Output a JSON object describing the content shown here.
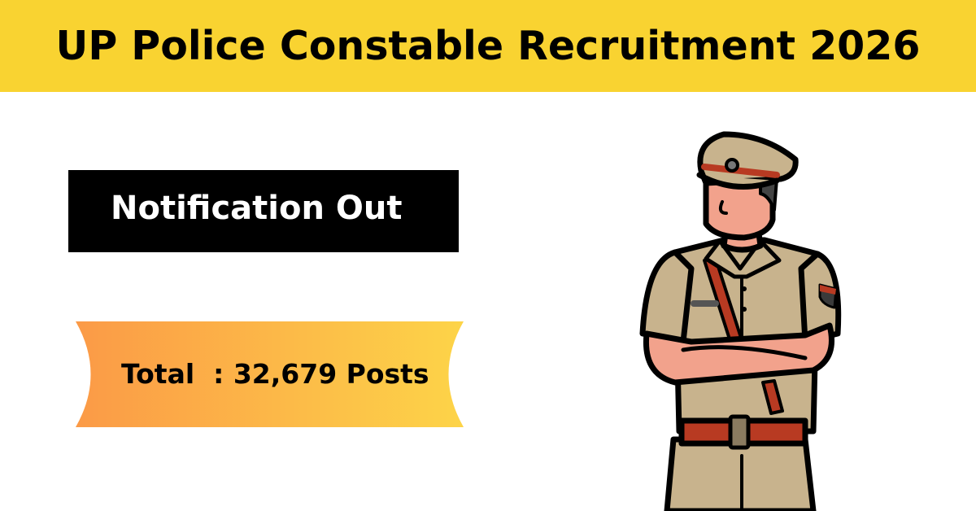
{
  "header": {
    "title": "UP Police Constable Recruitment 2026",
    "background": "#F9D331"
  },
  "notice": {
    "label": "Notification Out"
  },
  "ribbon": {
    "text": "Total  : 32,679 Posts",
    "gradient": [
      "#FB9A47",
      "#FDD448"
    ]
  },
  "illustration": {
    "subject": "police-officer",
    "colors": {
      "uniform": "#C8B38D",
      "skin": "#F2A28C",
      "belt": "#B83A22",
      "outline": "#000000"
    }
  }
}
